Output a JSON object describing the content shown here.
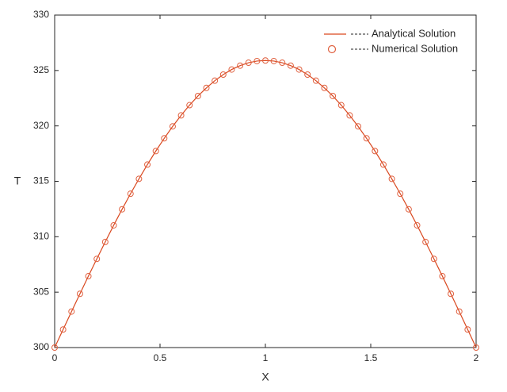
{
  "chart_data": {
    "type": "line",
    "xlabel": "X",
    "ylabel": "T",
    "x": [
      0,
      0.04,
      0.08,
      0.12,
      0.16,
      0.2,
      0.24,
      0.28,
      0.32,
      0.36,
      0.4,
      0.44,
      0.48,
      0.52,
      0.56,
      0.6,
      0.64,
      0.68,
      0.72,
      0.76,
      0.8,
      0.84,
      0.88,
      0.92,
      0.96,
      1,
      1.04,
      1.08,
      1.12,
      1.16,
      1.2,
      1.24,
      1.28,
      1.32,
      1.36,
      1.4,
      1.44,
      1.48,
      1.52,
      1.56,
      1.6,
      1.64,
      1.68,
      1.72,
      1.76,
      1.8,
      1.84,
      1.88,
      1.92,
      1.96,
      2
    ],
    "series": [
      {
        "name": "Analytical Solution",
        "color": "#d9481f",
        "style": "line",
        "values": [
          300,
          301.63,
          303.25,
          304.85,
          306.44,
          308,
          309.53,
          311.03,
          312.48,
          313.88,
          315.22,
          316.51,
          317.73,
          318.88,
          319.96,
          320.95,
          321.87,
          322.7,
          323.43,
          324.08,
          324.63,
          325.09,
          325.44,
          325.7,
          325.85,
          325.9,
          325.85,
          325.7,
          325.44,
          325.09,
          324.63,
          324.08,
          323.43,
          322.7,
          321.87,
          320.95,
          319.96,
          318.88,
          317.73,
          316.51,
          315.22,
          313.88,
          312.48,
          311.03,
          309.53,
          308,
          306.44,
          304.85,
          303.25,
          301.63,
          300
        ]
      },
      {
        "name": "Numerical Solution",
        "color": "#e0603f",
        "style": "marker",
        "values": [
          300,
          301.63,
          303.25,
          304.85,
          306.44,
          308,
          309.53,
          311.03,
          312.48,
          313.88,
          315.22,
          316.51,
          317.73,
          318.88,
          319.96,
          320.95,
          321.87,
          322.7,
          323.43,
          324.08,
          324.63,
          325.09,
          325.44,
          325.7,
          325.85,
          325.9,
          325.85,
          325.7,
          325.44,
          325.09,
          324.63,
          324.08,
          323.43,
          322.7,
          321.87,
          320.95,
          319.96,
          318.88,
          317.73,
          316.51,
          315.22,
          313.88,
          312.48,
          311.03,
          309.53,
          308,
          306.44,
          304.85,
          303.25,
          301.63,
          300
        ]
      }
    ],
    "xlim": [
      0,
      2
    ],
    "xticks": [
      0,
      0.5,
      1,
      1.5,
      2
    ],
    "ylim": [
      300,
      330
    ],
    "yticks": [
      300,
      305,
      310,
      315,
      320,
      325,
      330
    ],
    "grid": false,
    "legend": "northeast"
  }
}
